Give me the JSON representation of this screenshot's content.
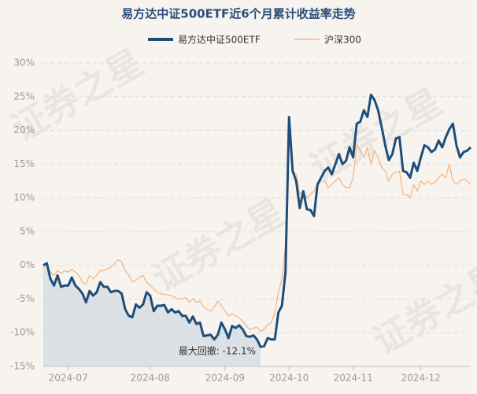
{
  "chart_data": {
    "type": "line",
    "title": "易方达中证500ETF近6个月累计收益率走势",
    "watermark": "证券之星",
    "annotation": "最大回撤: -12.1%",
    "categories": [
      null,
      null,
      null,
      null,
      null,
      null,
      null,
      "2024-07",
      null,
      null,
      null,
      null,
      null,
      null,
      null,
      null,
      null,
      null,
      null,
      null,
      null,
      null,
      null,
      null,
      null,
      null,
      null,
      null,
      null,
      null,
      "2024-08",
      null,
      null,
      null,
      null,
      null,
      null,
      null,
      null,
      null,
      null,
      null,
      null,
      null,
      null,
      null,
      null,
      null,
      null,
      null,
      null,
      "2024-09",
      null,
      null,
      null,
      null,
      null,
      null,
      null,
      null,
      null,
      null,
      null,
      null,
      null,
      null,
      null,
      null,
      null,
      "2024-10",
      null,
      null,
      null,
      null,
      null,
      null,
      null,
      null,
      null,
      null,
      null,
      null,
      null,
      null,
      null,
      null,
      null,
      "2024-11",
      null,
      null,
      null,
      null,
      null,
      null,
      null,
      null,
      null,
      null,
      null,
      null,
      null,
      null,
      null,
      null,
      null,
      null,
      "2024-12",
      null,
      null,
      null,
      null,
      null,
      null,
      null,
      null,
      null,
      null,
      null,
      null,
      null,
      null
    ],
    "series": [
      {
        "name": "易方达中证500ETF",
        "color": "#1f4e79",
        "values": [
          0,
          0.3,
          -2,
          -3,
          -1.5,
          -3.2,
          -3,
          -3,
          -1.8,
          -3,
          -3.5,
          -4.2,
          -5.5,
          -3.8,
          -4.5,
          -4,
          -2.5,
          -3.2,
          -3.2,
          -4,
          -3.8,
          -3.8,
          -4.2,
          -6.5,
          -7.5,
          -7.7,
          -5.8,
          -6.3,
          -5.8,
          -4,
          -4.5,
          -6.8,
          -6,
          -6,
          -5.9,
          -7,
          -6.5,
          -7,
          -6.8,
          -7.5,
          -7.5,
          -8.5,
          -7.6,
          -8.7,
          -8.5,
          -10.5,
          -10.4,
          -10.3,
          -11,
          -10.3,
          -8.5,
          -9.5,
          -10.8,
          -9,
          -9.3,
          -8.9,
          -9.5,
          -10.5,
          -10.6,
          -10.4,
          -11,
          -12.1,
          -12,
          -10.8,
          -11,
          -11,
          -7,
          -6,
          -1,
          22,
          14,
          12.5,
          8.5,
          11,
          8.3,
          8.2,
          7.3,
          12,
          13,
          14,
          14.5,
          13.5,
          15,
          16.5,
          15,
          15.5,
          17.5,
          16,
          21,
          21.3,
          23,
          22,
          25.3,
          24.5,
          23,
          20.5,
          17.8,
          15.6,
          16.5,
          18.8,
          19,
          14,
          13.8,
          13,
          15.2,
          14,
          16,
          17.8,
          17.5,
          16.8,
          17.2,
          18.5,
          17.5,
          19,
          20.2,
          21,
          17.8,
          16,
          16.8,
          17,
          17.5
        ]
      },
      {
        "name": "沪深300",
        "color": "#f5b27a",
        "values": [
          0,
          0.2,
          -1,
          -1.5,
          -0.8,
          -1.2,
          -0.8,
          -1,
          -0.6,
          -1,
          -1.5,
          -2.5,
          -2.8,
          -1.5,
          -2,
          -1.5,
          -0.8,
          -0.8,
          -0.5,
          -0.3,
          0.3,
          0.8,
          0.5,
          -0.8,
          -1.5,
          -2.5,
          -2.2,
          -1.8,
          -1.5,
          -2.5,
          -3,
          -3.5,
          -4,
          -4.2,
          -4.3,
          -4.4,
          -4.5,
          -4.8,
          -5,
          -5,
          -4.8,
          -5.5,
          -5,
          -5.5,
          -5.3,
          -6.2,
          -6.5,
          -6.8,
          -6.2,
          -5.3,
          -6,
          -6.8,
          -7.5,
          -7.2,
          -7.5,
          -7.8,
          -8.3,
          -9,
          -9.5,
          -9.3,
          -9.2,
          -9.8,
          -9.5,
          -8.8,
          -8.5,
          -7,
          -4,
          -2,
          3,
          21,
          14,
          13.5,
          10.5,
          11,
          10,
          10.5,
          11,
          12,
          12.5,
          12.5,
          11.5,
          12,
          12.5,
          13,
          12,
          11.5,
          11.5,
          13,
          18,
          17,
          16,
          17.5,
          15,
          17,
          16,
          14.5,
          14,
          12.5,
          13.5,
          13.8,
          14,
          10.5,
          10.5,
          10,
          12,
          11,
          12.5,
          12,
          12.5,
          12,
          12.3,
          13,
          13.5,
          13,
          15,
          12.5,
          12,
          12.5,
          12.8,
          12.5,
          12
        ]
      }
    ],
    "ylim": [
      -15,
      30
    ],
    "yticks": [
      {
        "value": -15,
        "label": "-15%"
      },
      {
        "value": -10,
        "label": "-10%"
      },
      {
        "value": -5,
        "label": "-5%"
      },
      {
        "value": 0,
        "label": "0%"
      },
      {
        "value": 5,
        "label": "5%"
      },
      {
        "value": 10,
        "label": "10%"
      },
      {
        "value": 15,
        "label": "15%"
      },
      {
        "value": 20,
        "label": "20%"
      },
      {
        "value": 25,
        "label": "25%"
      },
      {
        "value": 30,
        "label": "30%"
      }
    ],
    "grid": true
  }
}
